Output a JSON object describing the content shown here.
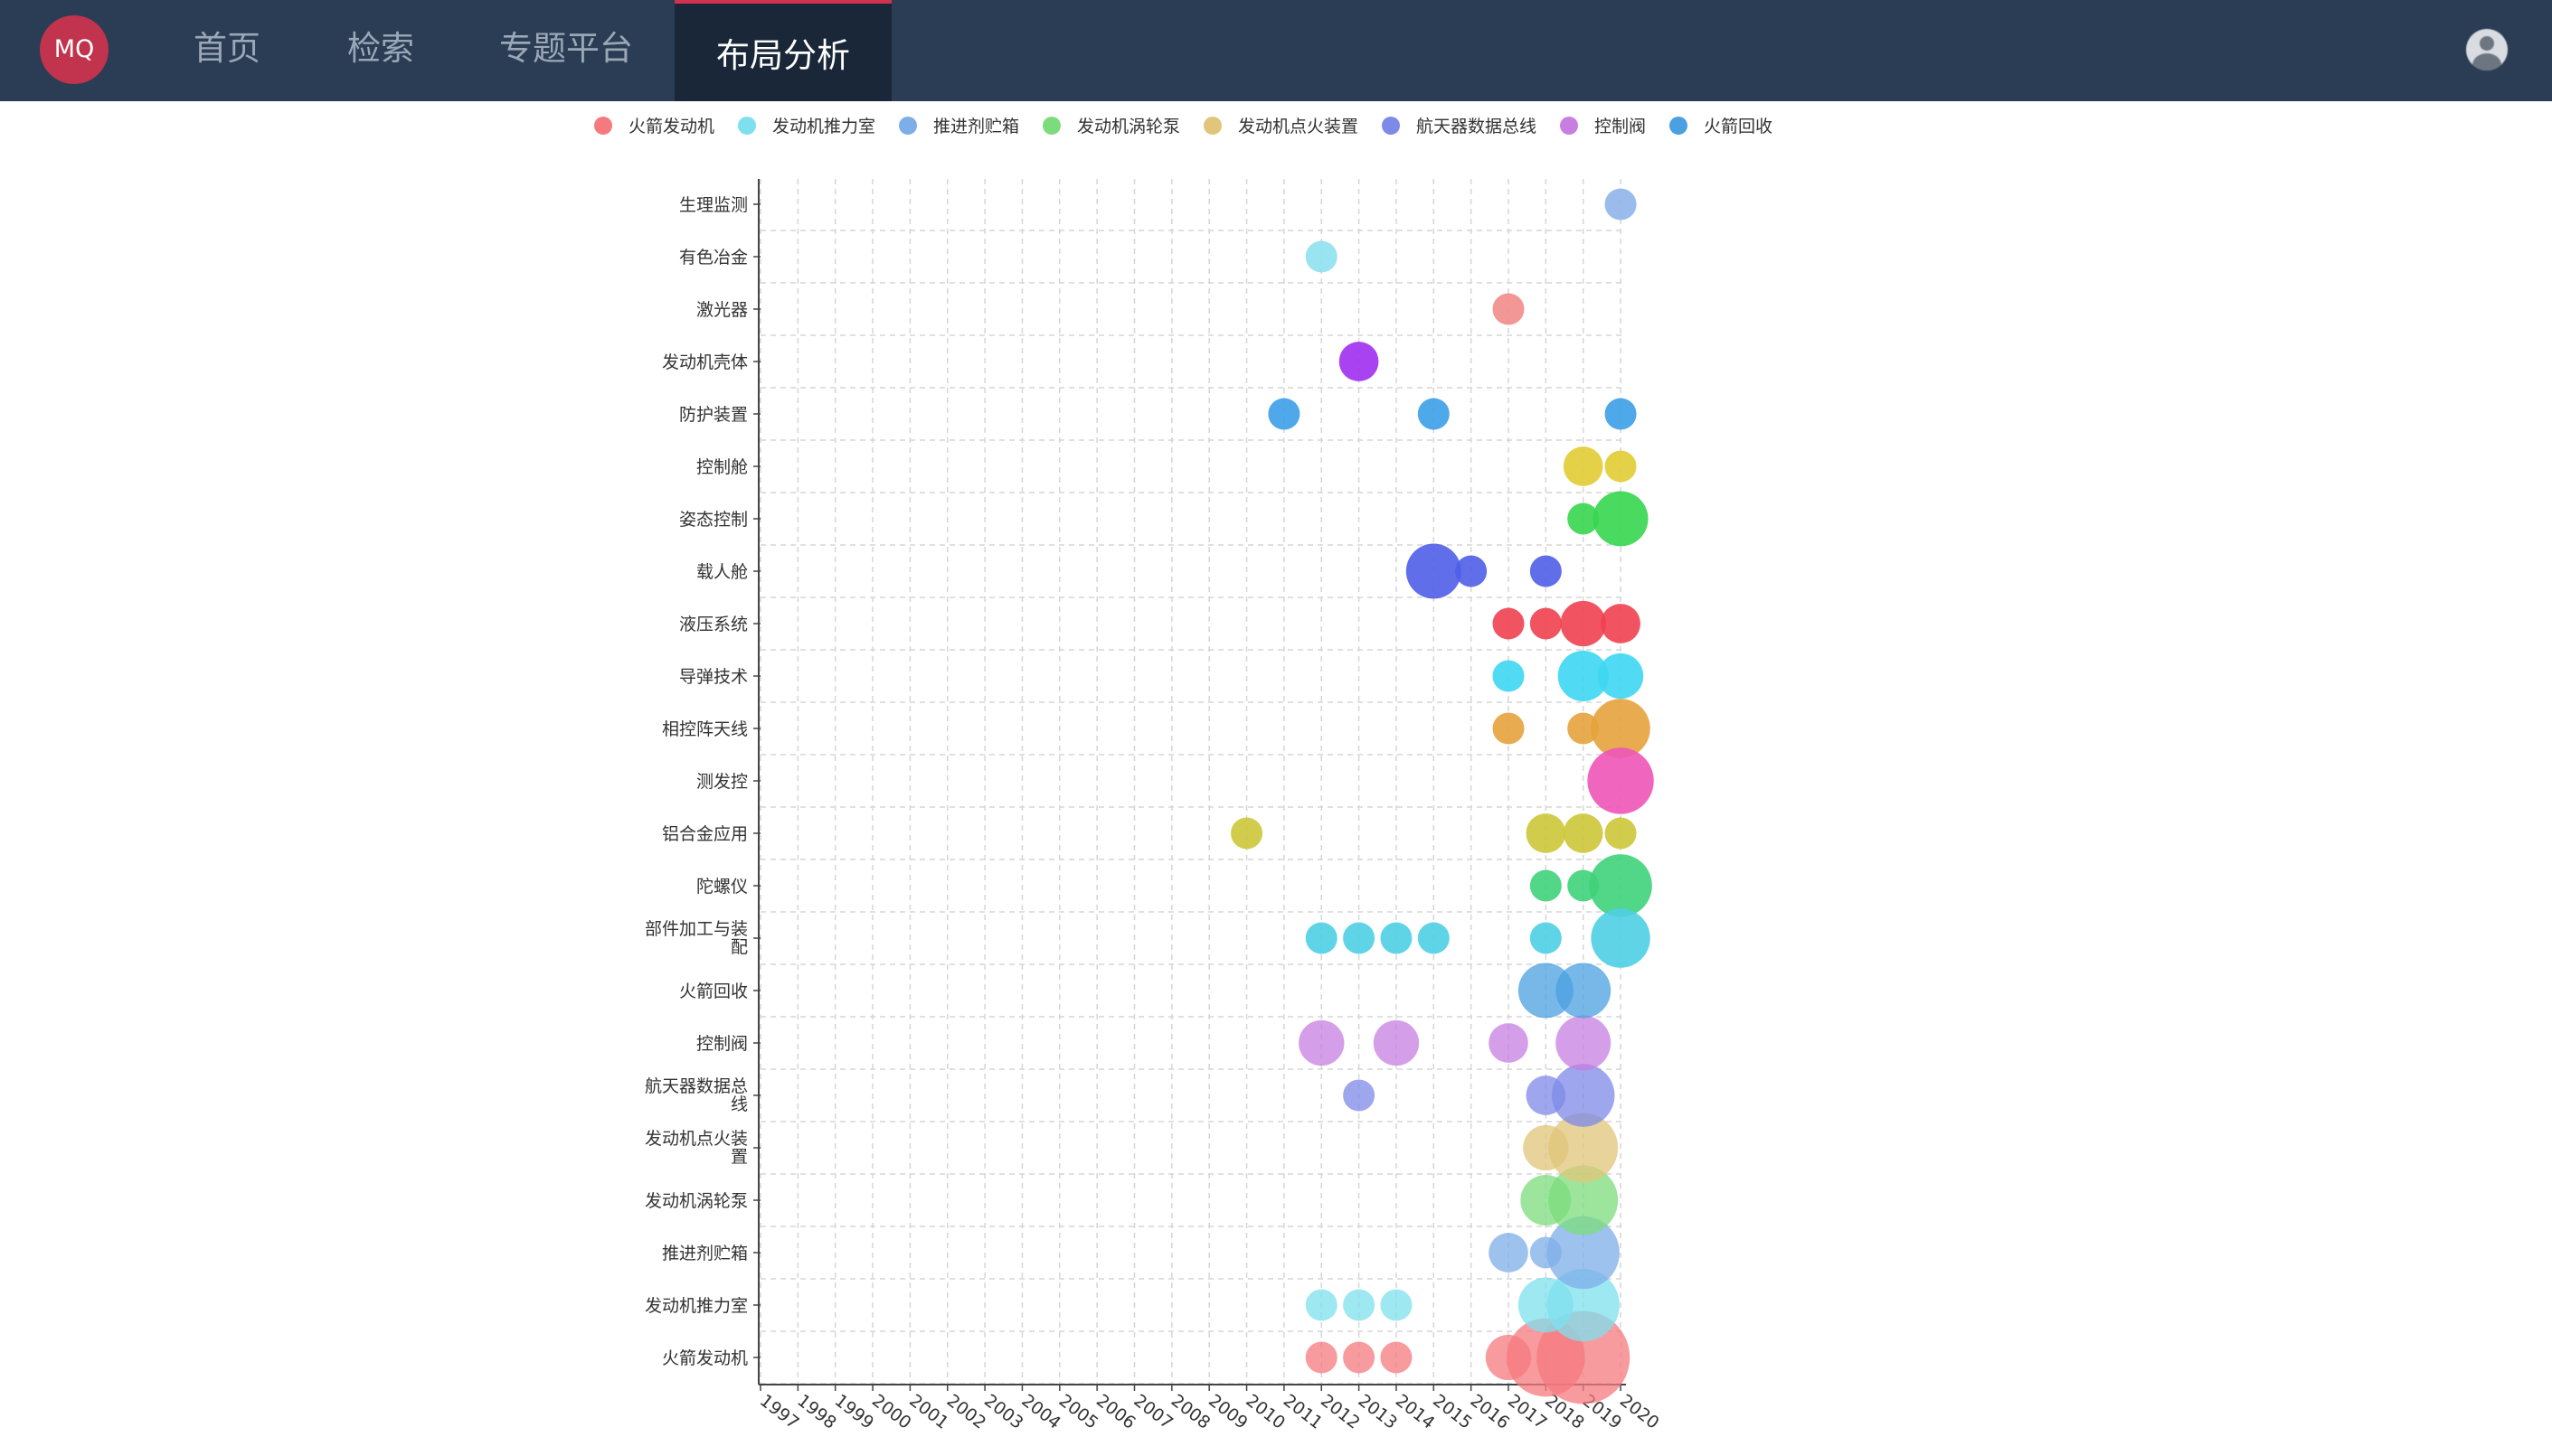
{
  "header": {
    "logo": "MQ",
    "nav": [
      "首页",
      "检索",
      "专题平台",
      "布局分析"
    ],
    "active_index": 3
  },
  "chart_data": {
    "type": "scatter",
    "legend_position": "top",
    "grid": true,
    "x_categories": [
      "1997",
      "1998",
      "1999",
      "2000",
      "2001",
      "2002",
      "2003",
      "2004",
      "2005",
      "2006",
      "2007",
      "2008",
      "2009",
      "2010",
      "2011",
      "2012",
      "2013",
      "2014",
      "2015",
      "2016",
      "2017",
      "2018",
      "2019",
      "2020"
    ],
    "y_categories": [
      "火箭发动机",
      "发动机推力室",
      "推进剂贮箱",
      "发动机涡轮泵",
      "发动机点火装置",
      "航天器数据总线",
      "控制阀",
      "火箭回收",
      "部件加工与装配",
      "陀螺仪",
      "铝合金应用",
      "测发控",
      "相控阵天线",
      "导弹技术",
      "液压系统",
      "载人舱",
      "姿态控制",
      "控制舱",
      "防护装置",
      "发动机壳体",
      "激光器",
      "有色冶金",
      "生理监测"
    ],
    "series": [
      {
        "name": "火箭发动机",
        "color": "#f57a7f",
        "points": [
          [
            "2012",
            1
          ],
          [
            "2013",
            1
          ],
          [
            "2014",
            1
          ],
          [
            "2017",
            3
          ],
          [
            "2018",
            12
          ],
          [
            "2019",
            18
          ]
        ]
      },
      {
        "name": "发动机推力室",
        "color": "#7ee0ee",
        "points": [
          [
            "2012",
            1
          ],
          [
            "2013",
            1
          ],
          [
            "2014",
            1
          ],
          [
            "2018",
            5
          ],
          [
            "2019",
            10
          ]
        ]
      },
      {
        "name": "推进剂贮箱",
        "color": "#7eaee8",
        "points": [
          [
            "2017",
            2
          ],
          [
            "2018",
            1
          ],
          [
            "2019",
            10
          ]
        ]
      },
      {
        "name": "发动机涡轮泵",
        "color": "#7cdc7c",
        "points": [
          [
            "2018",
            4
          ],
          [
            "2019",
            9
          ]
        ]
      },
      {
        "name": "发动机点火装置",
        "color": "#e0c57a",
        "points": [
          [
            "2018",
            3
          ],
          [
            "2019",
            9
          ]
        ]
      },
      {
        "name": "航天器数据总线",
        "color": "#7d8ae8",
        "points": [
          [
            "2013",
            1
          ],
          [
            "2018",
            2
          ],
          [
            "2019",
            7
          ]
        ]
      },
      {
        "name": "控制阀",
        "color": "#c77ee0",
        "points": [
          [
            "2012",
            3
          ],
          [
            "2014",
            3
          ],
          [
            "2017",
            2
          ],
          [
            "2019",
            5
          ]
        ]
      },
      {
        "name": "火箭回收",
        "color": "#4aa0e0",
        "points": [
          [
            "2018",
            5
          ],
          [
            "2019",
            5
          ]
        ]
      }
    ],
    "extra_rows": [
      {
        "category": "生理监测",
        "color": "#8fb4ea",
        "points": [
          [
            "2020",
            1
          ]
        ]
      },
      {
        "category": "有色冶金",
        "color": "#8fe0ef",
        "points": [
          [
            "2012",
            1
          ]
        ]
      },
      {
        "category": "激光器",
        "color": "#f28b8b",
        "points": [
          [
            "2017",
            1
          ]
        ]
      },
      {
        "category": "发动机壳体",
        "color": "#a02ff0",
        "points": [
          [
            "2013",
            2
          ]
        ]
      },
      {
        "category": "防护装置",
        "color": "#3b9fe8",
        "points": [
          [
            "2011",
            1
          ],
          [
            "2015",
            1
          ],
          [
            "2020",
            1
          ]
        ]
      },
      {
        "category": "控制舱",
        "color": "#e2cc33",
        "points": [
          [
            "2019",
            2
          ],
          [
            "2020",
            1
          ]
        ]
      },
      {
        "category": "姿态控制",
        "color": "#36d64e",
        "points": [
          [
            "2019",
            1
          ],
          [
            "2020",
            5
          ]
        ]
      },
      {
        "category": "载人舱",
        "color": "#4f5ee8",
        "points": [
          [
            "2015",
            5
          ],
          [
            "2016",
            1
          ],
          [
            "2018",
            1
          ]
        ]
      },
      {
        "category": "液压系统",
        "color": "#f04050",
        "points": [
          [
            "2017",
            1
          ],
          [
            "2018",
            1
          ],
          [
            "2019",
            3
          ],
          [
            "2020",
            2
          ]
        ]
      },
      {
        "category": "导弹技术",
        "color": "#3dd6f2",
        "points": [
          [
            "2017",
            1
          ],
          [
            "2019",
            4
          ],
          [
            "2020",
            3
          ]
        ]
      },
      {
        "category": "相控阵天线",
        "color": "#e6a23c",
        "points": [
          [
            "2017",
            1
          ],
          [
            "2019",
            1
          ],
          [
            "2020",
            6
          ]
        ]
      },
      {
        "category": "测发控",
        "color": "#ee55b8",
        "points": [
          [
            "2020",
            8
          ]
        ]
      },
      {
        "category": "铝合金应用",
        "color": "#cdc738",
        "points": [
          [
            "2010",
            1
          ],
          [
            "2018",
            2
          ],
          [
            "2019",
            2
          ],
          [
            "2020",
            1
          ]
        ]
      },
      {
        "category": "陀螺仪",
        "color": "#3fd27a",
        "points": [
          [
            "2018",
            1
          ],
          [
            "2019",
            1
          ],
          [
            "2020",
            7
          ]
        ]
      },
      {
        "category": "部件加工与装配",
        "color": "#4fcfe4",
        "points": [
          [
            "2012",
            1
          ],
          [
            "2013",
            1
          ],
          [
            "2014",
            1
          ],
          [
            "2015",
            1
          ],
          [
            "2018",
            1
          ],
          [
            "2020",
            6
          ]
        ]
      }
    ]
  }
}
